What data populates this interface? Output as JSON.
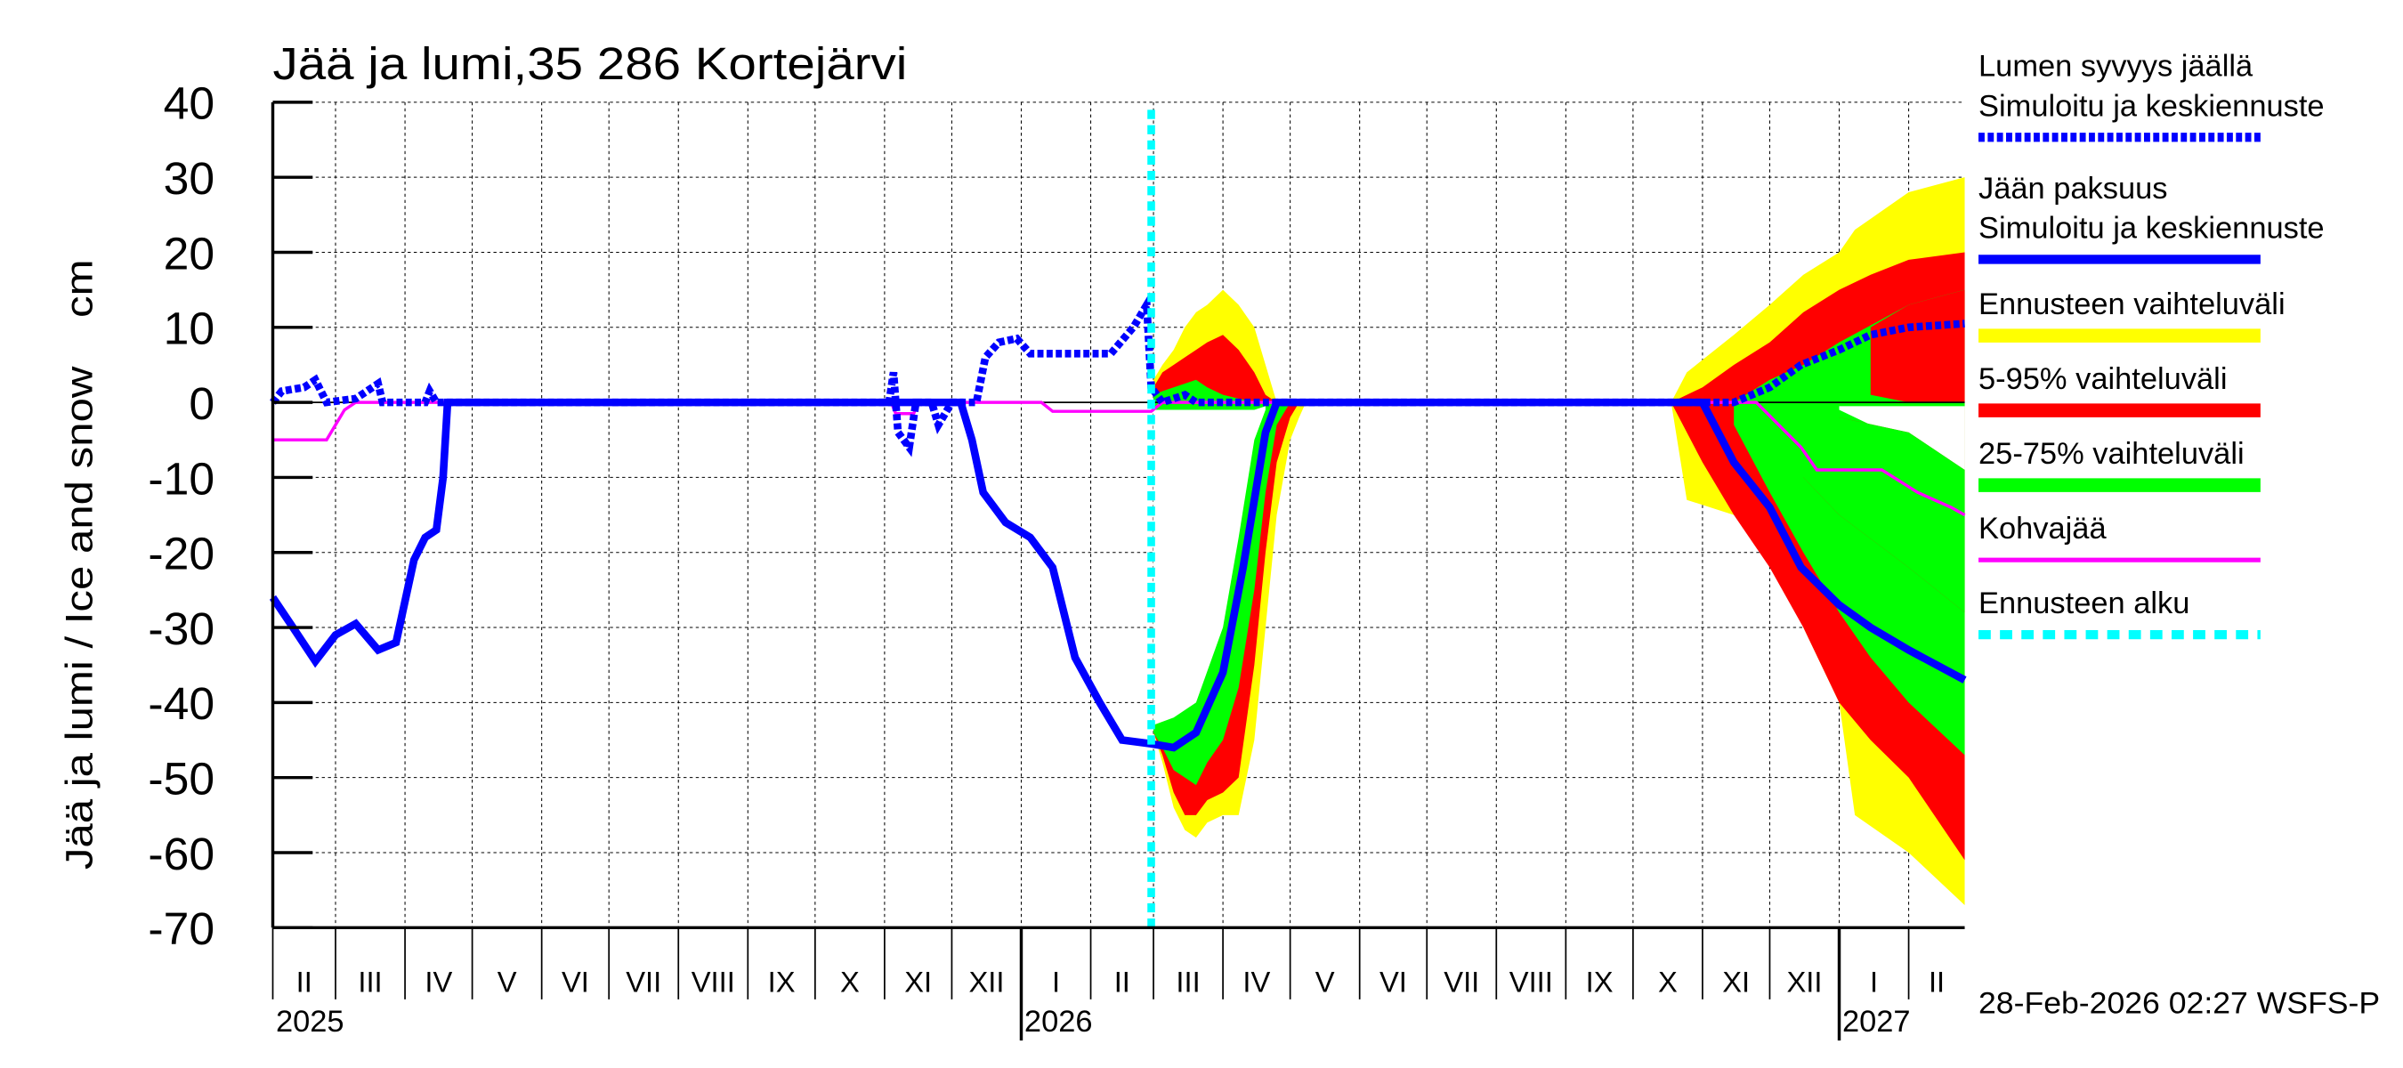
{
  "chart_data": {
    "type": "line",
    "title": "Jää ja lumi,35 286 Kortejärvi",
    "ylabel": "Jää ja lumi / Ice and snow    cm",
    "ylim": [
      -70,
      40
    ],
    "yticks": [
      40,
      30,
      20,
      10,
      0,
      -10,
      -20,
      -30,
      -40,
      -50,
      -60,
      -70
    ],
    "xlim": [
      "2025-02-01",
      "2027-02-26"
    ],
    "grid": true,
    "legend_placement": "right",
    "months": [
      {
        "start": "2025-02-01",
        "label": "II"
      },
      {
        "start": "2025-03-01",
        "label": "III"
      },
      {
        "start": "2025-04-01",
        "label": "IV"
      },
      {
        "start": "2025-05-01",
        "label": "V"
      },
      {
        "start": "2025-06-01",
        "label": "VI"
      },
      {
        "start": "2025-07-01",
        "label": "VII"
      },
      {
        "start": "2025-08-01",
        "label": "VIII"
      },
      {
        "start": "2025-09-01",
        "label": "IX"
      },
      {
        "start": "2025-10-01",
        "label": "X"
      },
      {
        "start": "2025-11-01",
        "label": "XI"
      },
      {
        "start": "2025-12-01",
        "label": "XII"
      },
      {
        "start": "2026-01-01",
        "label": "I"
      },
      {
        "start": "2026-02-01",
        "label": "II"
      },
      {
        "start": "2026-03-01",
        "label": "III"
      },
      {
        "start": "2026-04-01",
        "label": "IV"
      },
      {
        "start": "2026-05-01",
        "label": "V"
      },
      {
        "start": "2026-06-01",
        "label": "VI"
      },
      {
        "start": "2026-07-01",
        "label": "VII"
      },
      {
        "start": "2026-08-01",
        "label": "VIII"
      },
      {
        "start": "2026-09-01",
        "label": "IX"
      },
      {
        "start": "2026-10-01",
        "label": "X"
      },
      {
        "start": "2026-11-01",
        "label": "XI"
      },
      {
        "start": "2026-12-01",
        "label": "XII"
      },
      {
        "start": "2027-01-01",
        "label": "I"
      },
      {
        "start": "2027-02-01",
        "label": "II"
      }
    ],
    "years": [
      {
        "date": "2025-02-01",
        "label": "2025"
      },
      {
        "date": "2026-01-01",
        "label": "2026"
      },
      {
        "date": "2027-01-01",
        "label": "2027"
      }
    ],
    "forecast_start": "2026-02-28",
    "bands": [
      {
        "name": "Ennusteen vaihteluväli",
        "color": "#ffff00",
        "points": [
          [
            "2026-03-01",
            3,
            -44
          ],
          [
            "2026-03-05",
            5,
            -48
          ],
          [
            "2026-03-10",
            7,
            -54
          ],
          [
            "2026-03-15",
            10,
            -57
          ],
          [
            "2026-03-20",
            12,
            -58
          ],
          [
            "2026-03-25",
            13,
            -56
          ],
          [
            "2026-04-01",
            15,
            -55
          ],
          [
            "2026-04-08",
            13,
            -55
          ],
          [
            "2026-04-15",
            10,
            -45
          ],
          [
            "2026-04-20",
            5,
            -30
          ],
          [
            "2026-04-25",
            0,
            -15
          ],
          [
            "2026-05-01",
            0,
            -5
          ],
          [
            "2026-05-05",
            0,
            -2
          ],
          [
            "2026-05-08",
            0,
            0
          ]
        ]
      },
      {
        "name": "Ennusteen vaihteluväli",
        "color": "#ffff00",
        "points": [
          [
            "2026-10-18",
            0,
            0
          ],
          [
            "2026-10-25",
            4,
            -13
          ],
          [
            "2026-11-15",
            9,
            -15
          ],
          [
            "2026-12-01",
            13,
            -20
          ],
          [
            "2026-12-16",
            17,
            -30
          ],
          [
            "2027-01-01",
            20,
            -40
          ],
          [
            "2027-01-08",
            23,
            -55
          ],
          [
            "2027-02-01",
            28,
            -60
          ],
          [
            "2027-02-26",
            30,
            -67
          ]
        ]
      },
      {
        "name": "5-95% vaihteluväli",
        "color": "#ff0000",
        "points": [
          [
            "2026-03-01",
            2,
            -44
          ],
          [
            "2026-03-05",
            4,
            -47
          ],
          [
            "2026-03-10",
            5,
            -52
          ],
          [
            "2026-03-15",
            6,
            -55
          ],
          [
            "2026-03-20",
            7,
            -55
          ],
          [
            "2026-03-25",
            8,
            -53
          ],
          [
            "2026-04-01",
            9,
            -52
          ],
          [
            "2026-04-08",
            7,
            -50
          ],
          [
            "2026-04-15",
            4,
            -35
          ],
          [
            "2026-04-20",
            1,
            -20
          ],
          [
            "2026-04-25",
            0,
            -8
          ],
          [
            "2026-05-01",
            0,
            -2
          ],
          [
            "2026-05-05",
            0,
            0
          ]
        ]
      },
      {
        "name": "5-95% vaihteluväli",
        "color": "#ff0000",
        "points": [
          [
            "2026-10-18",
            0,
            0
          ],
          [
            "2026-11-01",
            2,
            -8
          ],
          [
            "2026-11-15",
            5,
            -15
          ],
          [
            "2026-12-01",
            8,
            -22
          ],
          [
            "2026-12-16",
            12,
            -30
          ],
          [
            "2027-01-01",
            15,
            -40
          ],
          [
            "2027-01-15",
            17,
            -45
          ],
          [
            "2027-02-01",
            19,
            -50
          ],
          [
            "2027-02-26",
            20,
            -61
          ]
        ]
      },
      {
        "name": "25-75% vaihteluväli",
        "color": "#00ff00",
        "points": [
          [
            "2026-03-01",
            1,
            -44
          ],
          [
            "2026-03-05",
            1.5,
            -46
          ],
          [
            "2026-03-10",
            2,
            -49
          ],
          [
            "2026-03-15",
            2.5,
            -50
          ],
          [
            "2026-03-20",
            3,
            -51
          ],
          [
            "2026-03-25",
            2,
            -48
          ],
          [
            "2026-04-01",
            1,
            -45
          ],
          [
            "2026-04-08",
            0.5,
            -38
          ],
          [
            "2026-04-15",
            0,
            -25
          ],
          [
            "2026-04-20",
            0,
            -12
          ],
          [
            "2026-04-25",
            0,
            -3
          ],
          [
            "2026-05-01",
            0,
            0
          ]
        ]
      },
      {
        "name": "25-75% vaihteluväli",
        "color": "#00ff00",
        "points": [
          [
            "2026-11-15",
            0,
            -3
          ],
          [
            "2026-12-01",
            3,
            -12
          ],
          [
            "2026-12-16",
            5,
            -20
          ],
          [
            "2027-01-01",
            8,
            -28
          ],
          [
            "2027-01-15",
            10,
            -34
          ],
          [
            "2027-02-01",
            13,
            -40
          ],
          [
            "2027-02-26",
            15,
            -47
          ]
        ]
      }
    ],
    "band_gaps": [
      {
        "color": "#ffffff",
        "note_free": true,
        "points": [
          [
            "2026-03-01",
            -1,
            -43
          ],
          [
            "2026-03-10",
            -1,
            -42
          ],
          [
            "2026-03-20",
            -1,
            -40
          ],
          [
            "2026-04-01",
            -1,
            -30
          ],
          [
            "2026-04-08",
            -1,
            -18
          ],
          [
            "2026-04-15",
            -1,
            -5
          ],
          [
            "2026-04-20",
            -0.5,
            -1
          ]
        ]
      },
      {
        "color": "#ffffff",
        "points": [
          [
            "2027-01-01",
            -0.5,
            -1
          ],
          [
            "2027-01-15",
            -0.5,
            -3
          ],
          [
            "2027-02-01",
            -0.5,
            -4
          ],
          [
            "2027-02-26",
            -0.5,
            -9
          ]
        ]
      }
    ],
    "inner_bands": [
      {
        "color": "#ff0000",
        "points": [
          [
            "2026-12-16",
            -2,
            -10
          ],
          [
            "2027-01-01",
            -2,
            -15
          ],
          [
            "2027-02-01",
            -4,
            -22
          ],
          [
            "2027-02-26",
            -9,
            -28
          ]
        ]
      },
      {
        "color": "#00ff00",
        "points": [
          [
            "2026-12-01",
            0,
            -5
          ],
          [
            "2026-12-16",
            -1,
            -10
          ],
          [
            "2027-01-01",
            -2,
            -15
          ],
          [
            "2027-02-01",
            -4,
            -22
          ],
          [
            "2027-02-26",
            -9,
            -28
          ]
        ]
      },
      {
        "color": "#00ff00",
        "points": [
          [
            "2027-01-01",
            8,
            2
          ],
          [
            "2027-02-01",
            13,
            5
          ],
          [
            "2027-02-26",
            15,
            7
          ]
        ]
      },
      {
        "color": "#ff0000",
        "points": [
          [
            "2027-01-15",
            10,
            1
          ],
          [
            "2027-02-01",
            13,
            0
          ],
          [
            "2027-02-26",
            15,
            0
          ]
        ]
      }
    ],
    "series": [
      {
        "name": "Kohvajää",
        "color": "#ff00ff",
        "style": "solid",
        "points": [
          [
            "2025-02-01",
            -5
          ],
          [
            "2025-02-25",
            -5
          ],
          [
            "2025-03-05",
            -1
          ],
          [
            "2025-03-10",
            0
          ],
          [
            "2025-11-04",
            0
          ],
          [
            "2025-11-06",
            -1.5
          ],
          [
            "2025-11-14",
            -1.5
          ],
          [
            "2025-11-16",
            0
          ],
          [
            "2026-01-10",
            0
          ],
          [
            "2026-01-15",
            -1.2
          ],
          [
            "2026-02-28",
            -1.2
          ],
          [
            "2026-03-05",
            0
          ],
          [
            "2026-11-25",
            0
          ],
          [
            "2026-12-05",
            -3
          ],
          [
            "2026-12-15",
            -6
          ],
          [
            "2026-12-22",
            -9
          ],
          [
            "2027-01-20",
            -9
          ],
          [
            "2027-02-05",
            -12
          ],
          [
            "2027-02-20",
            -14
          ],
          [
            "2027-02-26",
            -15
          ]
        ]
      },
      {
        "name": "Jään paksuus Simuloitu ja keskiennuste",
        "color": "#0000ff",
        "style": "solid",
        "points": [
          [
            "2025-02-01",
            -26
          ],
          [
            "2025-02-10",
            -30
          ],
          [
            "2025-02-20",
            -34.5
          ],
          [
            "2025-03-01",
            -31
          ],
          [
            "2025-03-10",
            -29.5
          ],
          [
            "2025-03-20",
            -33
          ],
          [
            "2025-03-28",
            -32
          ],
          [
            "2025-04-05",
            -21
          ],
          [
            "2025-04-10",
            -18
          ],
          [
            "2025-04-15",
            -17
          ],
          [
            "2025-04-18",
            -10
          ],
          [
            "2025-04-20",
            0
          ],
          [
            "2025-12-05",
            0
          ],
          [
            "2025-12-10",
            -5
          ],
          [
            "2025-12-15",
            -12
          ],
          [
            "2025-12-25",
            -16
          ],
          [
            "2026-01-05",
            -18
          ],
          [
            "2026-01-15",
            -22
          ],
          [
            "2026-01-25",
            -34
          ],
          [
            "2026-02-05",
            -40
          ],
          [
            "2026-02-15",
            -45
          ],
          [
            "2026-02-28",
            -45.5
          ],
          [
            "2026-03-10",
            -46
          ],
          [
            "2026-03-20",
            -44
          ],
          [
            "2026-04-01",
            -36
          ],
          [
            "2026-04-10",
            -22
          ],
          [
            "2026-04-20",
            -4
          ],
          [
            "2026-04-25",
            0
          ],
          [
            "2026-11-01",
            0
          ],
          [
            "2026-11-15",
            -8
          ],
          [
            "2026-12-01",
            -14
          ],
          [
            "2026-12-15",
            -22
          ],
          [
            "2027-01-01",
            -27
          ],
          [
            "2027-01-15",
            -30
          ],
          [
            "2027-02-01",
            -33
          ],
          [
            "2027-02-26",
            -37
          ]
        ]
      },
      {
        "name": "Lumen syvyys jäällä Simuloitu ja keskiennuste",
        "color": "#0000ff",
        "style": "dashed",
        "points": [
          [
            "2025-02-01",
            0
          ],
          [
            "2025-02-05",
            1.5
          ],
          [
            "2025-02-15",
            2
          ],
          [
            "2025-02-20",
            3
          ],
          [
            "2025-02-25",
            0
          ],
          [
            "2025-03-10",
            0.5
          ],
          [
            "2025-03-20",
            2.5
          ],
          [
            "2025-03-22",
            0
          ],
          [
            "2025-04-10",
            0
          ],
          [
            "2025-04-12",
            1.5
          ],
          [
            "2025-04-15",
            0
          ],
          [
            "2025-11-03",
            0
          ],
          [
            "2025-11-05",
            4
          ],
          [
            "2025-11-07",
            -4
          ],
          [
            "2025-11-12",
            -6
          ],
          [
            "2025-11-15",
            0
          ],
          [
            "2025-11-22",
            0
          ],
          [
            "2025-11-25",
            -3
          ],
          [
            "2025-12-01",
            0
          ],
          [
            "2025-12-12",
            0
          ],
          [
            "2025-12-16",
            6
          ],
          [
            "2025-12-22",
            8
          ],
          [
            "2025-12-30",
            8.5
          ],
          [
            "2026-01-05",
            6.5
          ],
          [
            "2026-02-10",
            6.5
          ],
          [
            "2026-02-20",
            10
          ],
          [
            "2026-02-26",
            13
          ],
          [
            "2026-02-28",
            2
          ],
          [
            "2026-03-05",
            0
          ],
          [
            "2026-03-15",
            1
          ],
          [
            "2026-03-20",
            0
          ],
          [
            "2026-11-15",
            0
          ],
          [
            "2026-12-01",
            2
          ],
          [
            "2026-12-15",
            5
          ],
          [
            "2027-01-01",
            7
          ],
          [
            "2027-01-15",
            9
          ],
          [
            "2027-02-01",
            10
          ],
          [
            "2027-02-26",
            10.5
          ]
        ]
      }
    ]
  },
  "legend": [
    {
      "line1": "Lumen syvyys jäällä",
      "line2": "Simuloitu ja keskiennuste",
      "color": "#0000ff",
      "style": "dashed"
    },
    {
      "line1": "Jään paksuus",
      "line2": "Simuloitu ja keskiennuste",
      "color": "#0000ff",
      "style": "solid"
    },
    {
      "line1": "Ennusteen vaihteluväli",
      "color": "#ffff00",
      "style": "band"
    },
    {
      "line1": "5-95% vaihteluväli",
      "color": "#ff0000",
      "style": "band"
    },
    {
      "line1": "25-75% vaihteluväli",
      "color": "#00ff00",
      "style": "band"
    },
    {
      "line1": "Kohvajää",
      "color": "#ff00ff",
      "style": "thin"
    },
    {
      "line1": "Ennusteen alku",
      "color": "#00ffff",
      "style": "dotted"
    }
  ],
  "footer": {
    "timestamp": "28-Feb-2026 02:27 WSFS-P"
  }
}
